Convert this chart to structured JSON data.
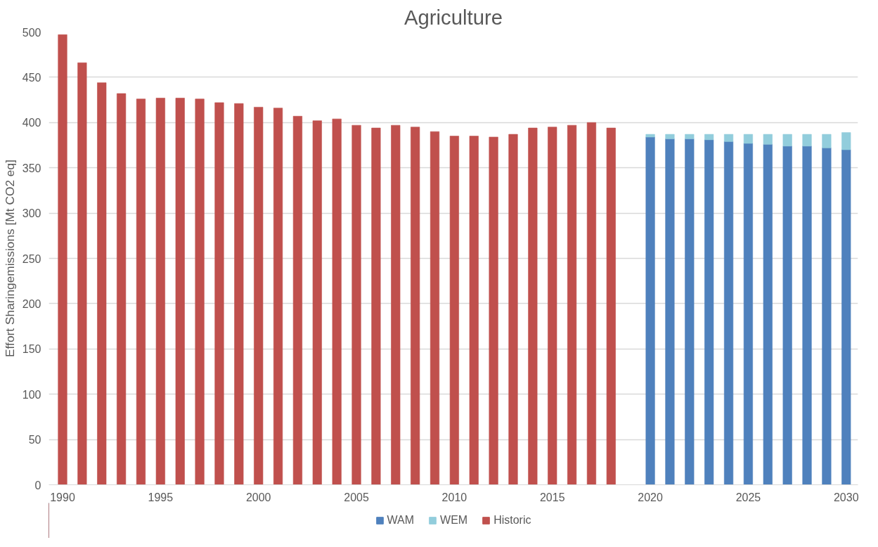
{
  "chart_data": {
    "type": "bar",
    "title": "Agriculture",
    "ylabel": "Effort Sharingemissions [Mt CO2 eq]",
    "stacked": true,
    "xlim": [
      1989.3,
      2030.6
    ],
    "xticks": [
      1990,
      1995,
      2000,
      2005,
      2010,
      2015,
      2020,
      2025,
      2030
    ],
    "ylim": [
      0,
      500
    ],
    "yticks": [
      0,
      50,
      100,
      150,
      200,
      250,
      300,
      350,
      400,
      450,
      500
    ],
    "grid": "y",
    "legend": "bottom",
    "x": [
      1990,
      1991,
      1992,
      1993,
      1994,
      1995,
      1996,
      1997,
      1998,
      1999,
      2000,
      2001,
      2002,
      2003,
      2004,
      2005,
      2006,
      2007,
      2008,
      2009,
      2010,
      2011,
      2012,
      2013,
      2014,
      2015,
      2016,
      2017,
      2018,
      2020,
      2021,
      2022,
      2023,
      2024,
      2025,
      2026,
      2027,
      2028,
      2029,
      2030
    ],
    "series": [
      {
        "name": "WAM",
        "color": "#4f81bd",
        "values": [
          null,
          null,
          null,
          null,
          null,
          null,
          null,
          null,
          null,
          null,
          null,
          null,
          null,
          null,
          null,
          null,
          null,
          null,
          null,
          null,
          null,
          null,
          null,
          null,
          null,
          null,
          null,
          null,
          null,
          384,
          382,
          382,
          381,
          379,
          377,
          376,
          374,
          374,
          372,
          370
        ]
      },
      {
        "name": "WEM",
        "color": "#92cddc",
        "values": [
          null,
          null,
          null,
          null,
          null,
          null,
          null,
          null,
          null,
          null,
          null,
          null,
          null,
          null,
          null,
          null,
          null,
          null,
          null,
          null,
          null,
          null,
          null,
          null,
          null,
          null,
          null,
          null,
          null,
          3,
          5,
          5,
          6,
          8,
          10,
          11,
          13,
          13,
          15,
          19
        ]
      },
      {
        "name": "Historic",
        "color": "#c0504d",
        "values": [
          497,
          466,
          444,
          432,
          426,
          427,
          427,
          426,
          422,
          421,
          417,
          416,
          407,
          402,
          404,
          397,
          394,
          397,
          395,
          390,
          385,
          385,
          384,
          387,
          394,
          395,
          397,
          400,
          394,
          null,
          null,
          null,
          null,
          null,
          null,
          null,
          null,
          null,
          null,
          null
        ]
      }
    ]
  }
}
